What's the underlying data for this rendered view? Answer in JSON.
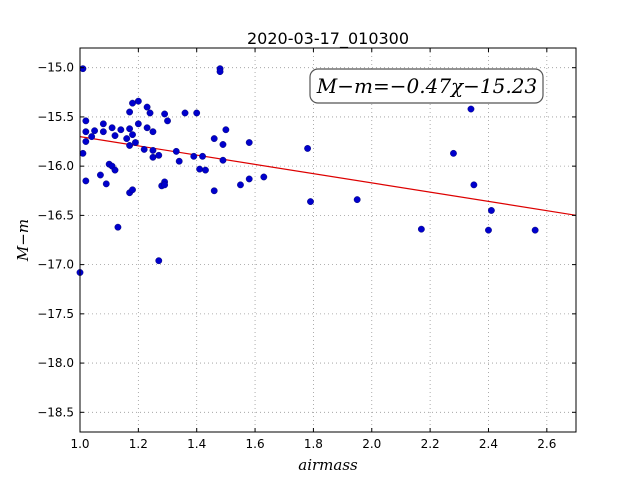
{
  "chart_data": {
    "type": "scatter",
    "title": "2020-03-17_010300",
    "xlabel": "airmass",
    "ylabel": "M−m",
    "xlim": [
      1.0,
      2.7
    ],
    "ylim": [
      -18.7,
      -14.8
    ],
    "xticks": [
      1.0,
      1.2,
      1.4,
      1.6,
      1.8,
      2.0,
      2.2,
      2.4,
      2.6
    ],
    "xtick_labels": [
      "1.0",
      "1.2",
      "1.4",
      "1.6",
      "1.8",
      "2.0",
      "2.2",
      "2.4",
      "2.6"
    ],
    "yticks": [
      -15.0,
      -15.5,
      -16.0,
      -16.5,
      -17.0,
      -17.5,
      -18.0,
      -18.5
    ],
    "ytick_labels": [
      "−15.0",
      "−15.5",
      "−16.0",
      "−16.5",
      "−17.0",
      "−17.5",
      "−18.0",
      "−18.5"
    ],
    "grid": true,
    "annotation": "M−m=−0.47χ−15.23",
    "fit": {
      "slope": -0.47,
      "intercept": -15.23,
      "color": "#dd0000"
    },
    "point_color": "#0000cc",
    "points": [
      [
        1.0,
        -17.08
      ],
      [
        1.01,
        -15.01
      ],
      [
        1.01,
        -15.87
      ],
      [
        1.02,
        -15.54
      ],
      [
        1.02,
        -15.65
      ],
      [
        1.02,
        -15.75
      ],
      [
        1.02,
        -16.15
      ],
      [
        1.04,
        -15.7
      ],
      [
        1.05,
        -15.64
      ],
      [
        1.07,
        -16.09
      ],
      [
        1.08,
        -15.57
      ],
      [
        1.08,
        -15.65
      ],
      [
        1.09,
        -16.18
      ],
      [
        1.1,
        -15.98
      ],
      [
        1.11,
        -16.0
      ],
      [
        1.11,
        -15.61
      ],
      [
        1.12,
        -16.04
      ],
      [
        1.12,
        -15.69
      ],
      [
        1.13,
        -16.62
      ],
      [
        1.14,
        -15.63
      ],
      [
        1.16,
        -15.72
      ],
      [
        1.17,
        -15.79
      ],
      [
        1.17,
        -15.45
      ],
      [
        1.17,
        -15.62
      ],
      [
        1.17,
        -16.27
      ],
      [
        1.18,
        -16.24
      ],
      [
        1.18,
        -15.68
      ],
      [
        1.18,
        -15.36
      ],
      [
        1.19,
        -15.76
      ],
      [
        1.2,
        -15.34
      ],
      [
        1.2,
        -15.57
      ],
      [
        1.22,
        -15.83
      ],
      [
        1.23,
        -15.4
      ],
      [
        1.23,
        -15.61
      ],
      [
        1.24,
        -15.46
      ],
      [
        1.25,
        -15.65
      ],
      [
        1.25,
        -15.91
      ],
      [
        1.25,
        -15.84
      ],
      [
        1.27,
        -15.89
      ],
      [
        1.27,
        -16.96
      ],
      [
        1.28,
        -16.2
      ],
      [
        1.29,
        -16.16
      ],
      [
        1.29,
        -16.19
      ],
      [
        1.29,
        -15.47
      ],
      [
        1.3,
        -15.54
      ],
      [
        1.33,
        -15.85
      ],
      [
        1.34,
        -15.95
      ],
      [
        1.36,
        -15.46
      ],
      [
        1.39,
        -15.9
      ],
      [
        1.4,
        -15.46
      ],
      [
        1.41,
        -16.03
      ],
      [
        1.42,
        -15.9
      ],
      [
        1.43,
        -16.04
      ],
      [
        1.46,
        -15.72
      ],
      [
        1.46,
        -16.25
      ],
      [
        1.48,
        -15.01
      ],
      [
        1.48,
        -15.04
      ],
      [
        1.49,
        -15.94
      ],
      [
        1.49,
        -15.78
      ],
      [
        1.5,
        -15.63
      ],
      [
        1.55,
        -16.19
      ],
      [
        1.58,
        -16.13
      ],
      [
        1.58,
        -15.76
      ],
      [
        1.63,
        -16.11
      ],
      [
        1.78,
        -15.82
      ],
      [
        1.79,
        -16.36
      ],
      [
        1.95,
        -16.34
      ],
      [
        2.17,
        -16.64
      ],
      [
        2.28,
        -15.87
      ],
      [
        2.34,
        -15.42
      ],
      [
        2.35,
        -16.19
      ],
      [
        2.4,
        -16.65
      ],
      [
        2.41,
        -16.45
      ],
      [
        2.56,
        -16.65
      ]
    ]
  }
}
